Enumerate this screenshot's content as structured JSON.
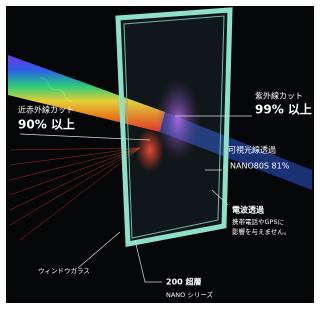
{
  "labels": {
    "uv_cut": {
      "title": "紫外線カット",
      "value": "99% 以上"
    },
    "near_infrared_cut": {
      "title": "近赤外線カット",
      "value": "90% 以上"
    },
    "visible_light": {
      "title": "可視光線透過",
      "value": "NANO80S 81%"
    },
    "radio": {
      "title": "電波透過",
      "lines": [
        "携帯電話やGPSに",
        "影響を与えません。"
      ]
    },
    "window": {
      "title": "ウィンドウガラス"
    },
    "layers": {
      "title": "200 超層",
      "subtitle": "NANO シリーズ"
    }
  }
}
